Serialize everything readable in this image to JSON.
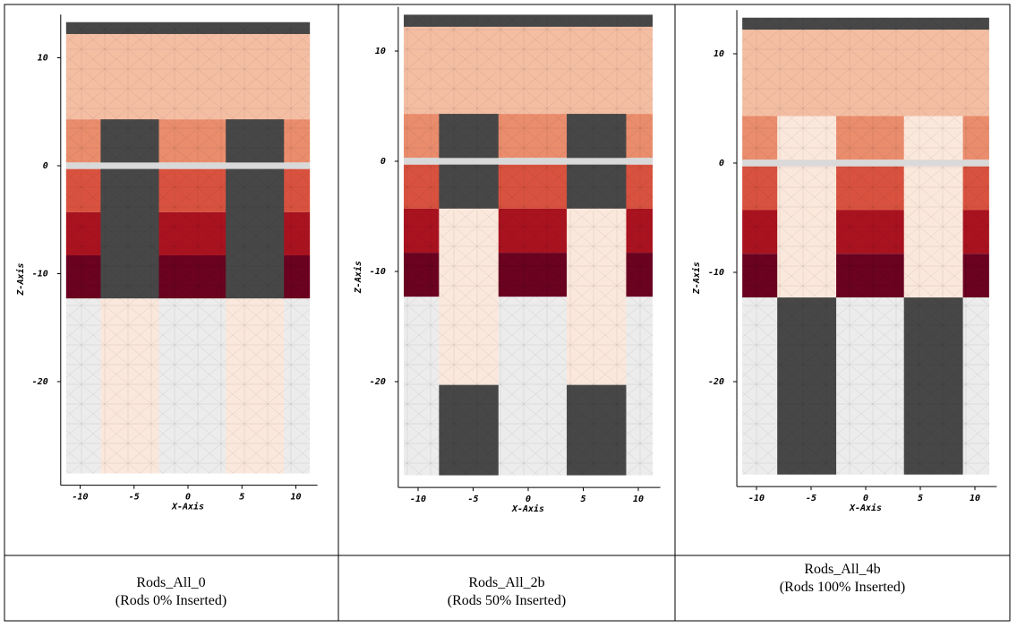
{
  "panels": [
    {
      "y_label": "Z-Axis",
      "x_label": "X-Axis",
      "yticks": [
        10,
        0,
        -10,
        -20
      ],
      "xticks": [
        -10,
        -5,
        0,
        5,
        10
      ],
      "caption": [
        "Rods_All_0",
        "(Rods 0% Inserted)"
      ]
    },
    {
      "y_label": "Z-Axis",
      "x_label": "X-Axis",
      "yticks": [
        10,
        0,
        -10,
        -20
      ],
      "xticks": [
        -10,
        -5,
        0,
        5,
        10
      ],
      "caption": [
        "Rods_All_2b",
        "(Rods 50% Inserted)"
      ]
    },
    {
      "y_label": "Z-Axis",
      "x_label": "X-Axis",
      "yticks": [
        10,
        0,
        -10,
        -20
      ],
      "xticks": [
        -10,
        -5,
        0,
        5,
        10
      ],
      "caption": [
        "Rods_All_4b",
        "(Rods 100% Inserted)"
      ]
    }
  ]
}
